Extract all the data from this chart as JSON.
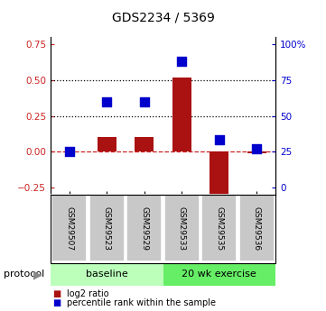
{
  "title": "GDS2234 / 5369",
  "samples": [
    "GSM29507",
    "GSM29523",
    "GSM29529",
    "GSM29533",
    "GSM29535",
    "GSM29536"
  ],
  "log2_ratio": [
    0.0,
    0.1,
    0.1,
    0.52,
    -0.3,
    -0.01
  ],
  "percentile_rank": [
    0.0,
    0.345,
    0.345,
    0.63,
    0.08,
    0.02
  ],
  "bar_color": "#aa1111",
  "dot_color": "#0000cc",
  "ylim": [
    -0.3,
    0.8
  ],
  "yticks_left": [
    -0.25,
    0.0,
    0.25,
    0.5,
    0.75
  ],
  "ytick_right_positions": [
    -0.25,
    0.0,
    0.25,
    0.5,
    0.75
  ],
  "ytick_right_labels": [
    "0",
    "25",
    "50",
    "75",
    "100%"
  ],
  "hlines_dotted": [
    0.25,
    0.5
  ],
  "hline_zero": 0.0,
  "bar_width": 0.5,
  "dot_size": 45,
  "baseline_color": "#bbffbb",
  "exercise_color": "#66ee66",
  "sample_box_color": "#c8c8c8",
  "protocol_label": "protocol",
  "legend_items": [
    "log2 ratio",
    "percentile rank within the sample"
  ],
  "left_color": "#cc2222",
  "right_color": "#0000cc"
}
